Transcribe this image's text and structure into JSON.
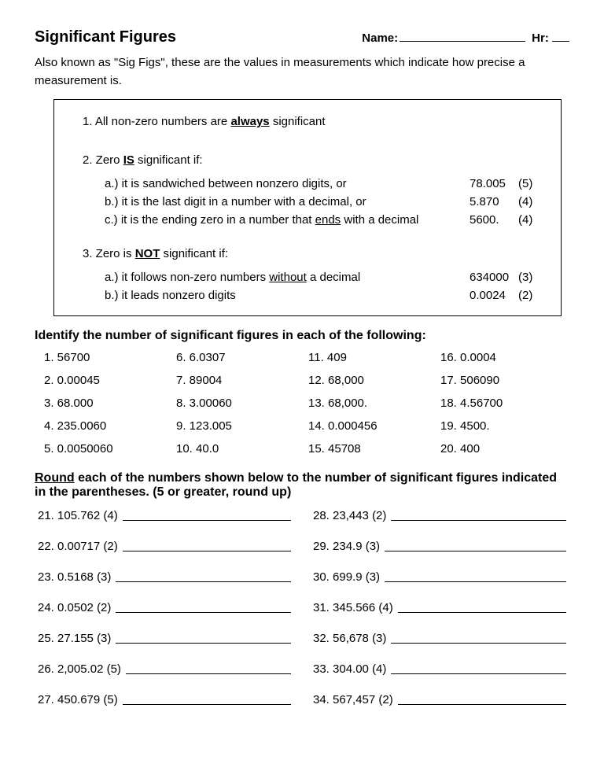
{
  "header": {
    "title": "Significant Figures",
    "name_label": "Name:",
    "hr_label": "Hr:"
  },
  "intro": "Also known as \"Sig Figs\", these are the values in measurements which indicate how precise a measurement is.",
  "rules": {
    "r1_prefix": "1.  All non-zero numbers are ",
    "r1_bold": "always",
    "r1_suffix": " significant",
    "r2_prefix": "2. Zero ",
    "r2_bold": "IS",
    "r2_suffix": " significant if:",
    "r2a": "a.) it is sandwiched between nonzero digits, or",
    "r2a_ex_num": "78.005",
    "r2a_ex_ct": "(5)",
    "r2b": "b.) it is the last digit in a number with a decimal, or",
    "r2b_ex_num": "5.870",
    "r2b_ex_ct": "(4)",
    "r2c_pre": "c.) it is the ending zero in a number that ",
    "r2c_u": "ends",
    "r2c_post": " with a decimal",
    "r2c_ex_num": "5600.",
    "r2c_ex_ct": "(4)",
    "r3_prefix": "3.  Zero is ",
    "r3_bold": "NOT",
    "r3_suffix": " significant if:",
    "r3a_pre": "a.) it follows non-zero numbers ",
    "r3a_u": "without",
    "r3a_post": " a decimal",
    "r3a_ex_num": "634000",
    "r3a_ex_ct": "(3)",
    "r3b": "b.) it leads nonzero digits",
    "r3b_ex_num": "0.0024",
    "r3b_ex_ct": "(2)"
  },
  "identify": {
    "heading": "Identify the number of significant figures in each of the following:",
    "items": [
      "1.  56700",
      "6.  6.0307",
      "11.  409",
      "16.  0.0004",
      "2.  0.00045",
      "7.  89004",
      "12.  68,000",
      "17.  506090",
      "3.  68.000",
      "8.  3.00060",
      "13.  68,000.",
      "18.  4.56700",
      "4.   235.0060",
      "9.  123.005",
      "14.  0.000456",
      "19.  4500.",
      "5.  0.0050060",
      "10.  40.0",
      "15.  45708",
      "20.  400"
    ]
  },
  "round": {
    "heading_u": "Round",
    "heading_rest": " each of the numbers shown below to the number of significant figures indicated in the parentheses.   (5 or greater, round up)",
    "items": [
      "21.   105.762 (4)",
      "28.   23,443 (2)",
      "22.   0.00717 (2)",
      "29.   234.9   (3)",
      "23.   0.5168 (3)",
      "30.   699.9   (3)",
      "24.   0.0502 (2)",
      "31.   345.566 (4)",
      "25.   27.155 (3)",
      "32.   56,678 (3)",
      "26.   2,005.02 (5)",
      "33.   304.00 (4)",
      "27.   450.679 (5)",
      "34.   567,457 (2)"
    ]
  }
}
